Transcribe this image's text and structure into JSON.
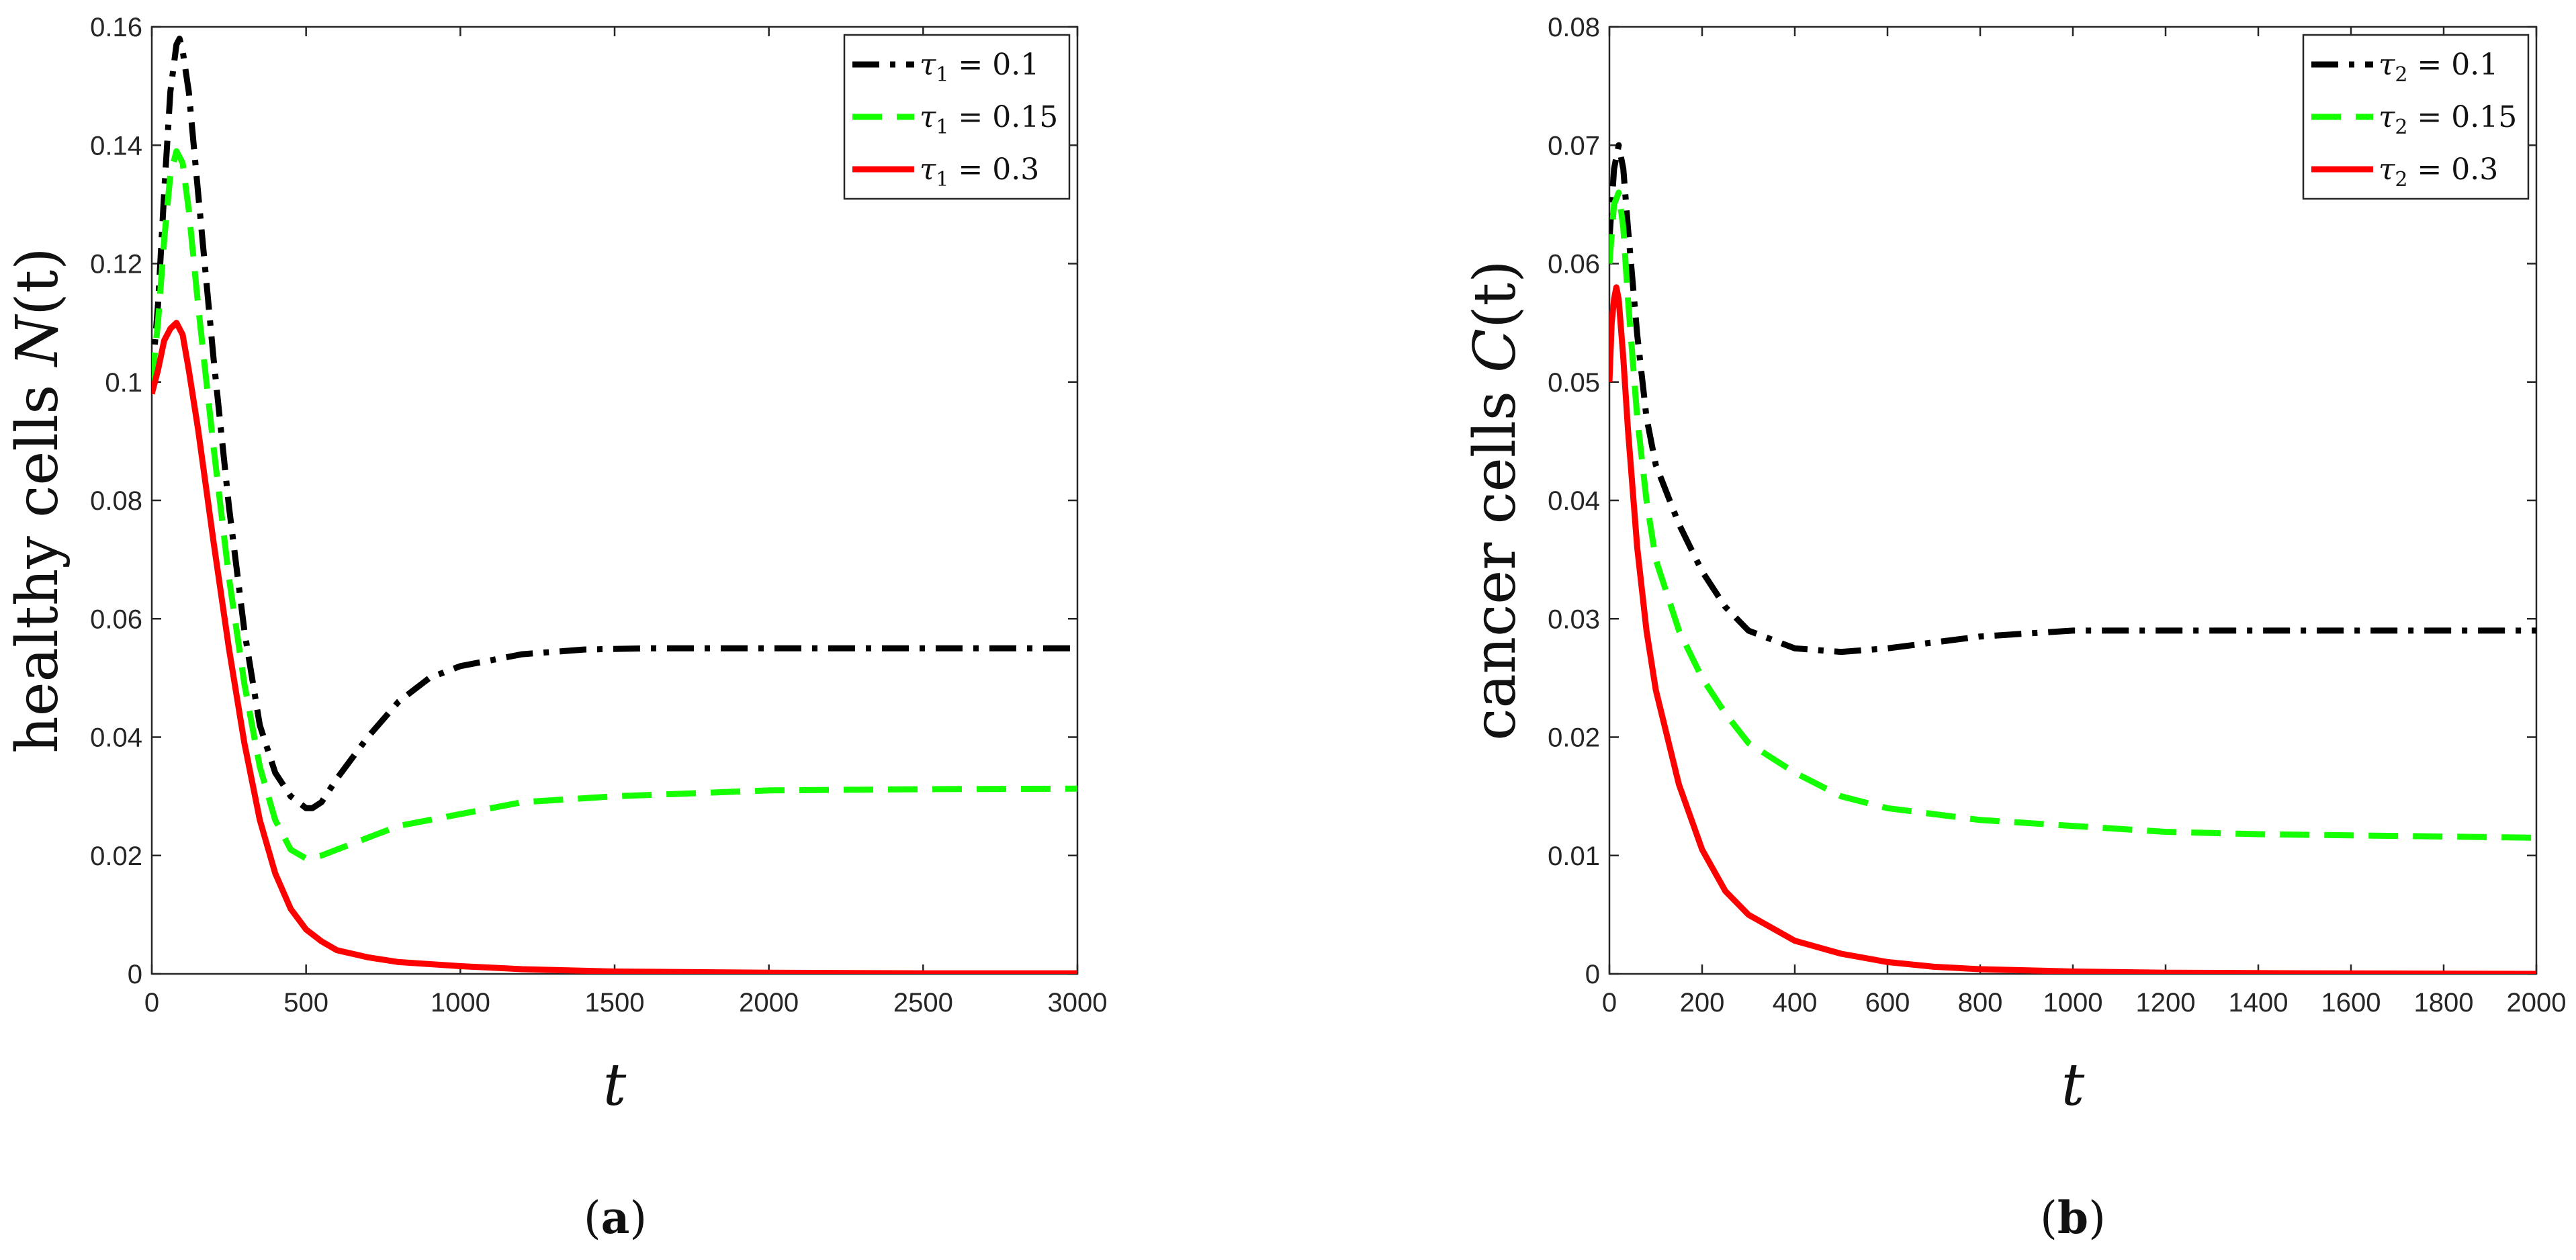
{
  "chart_data": [
    {
      "type": "line",
      "xlabel": "t",
      "ylabel_prefix": "healthy cells ",
      "ylabel_var": "N",
      "ylabel_arg": "(t)",
      "caption_letter": "a",
      "xlim": [
        0,
        3000
      ],
      "ylim": [
        0,
        0.16
      ],
      "xticks": [
        0,
        500,
        1000,
        1500,
        2000,
        2500,
        3000
      ],
      "yticks": [
        0,
        0.02,
        0.04,
        0.06,
        0.08,
        0.1,
        0.12,
        0.14,
        0.16
      ],
      "ytick_labels": [
        "0",
        "0.02",
        "0.04",
        "0.06",
        "0.08",
        "0.1",
        "0.12",
        "0.14",
        "0.16"
      ],
      "legend_position": "top-right",
      "series": [
        {
          "legend_var": "τ",
          "legend_sub": "1",
          "legend_value": " = 0.1",
          "color": "#000000",
          "style": "dashdot",
          "x": [
            0,
            20,
            40,
            60,
            80,
            90,
            100,
            120,
            150,
            200,
            250,
            300,
            350,
            400,
            450,
            500,
            520,
            550,
            600,
            700,
            800,
            900,
            1000,
            1200,
            1400,
            1600,
            2000,
            2500,
            3000
          ],
          "y": [
            0.1,
            0.113,
            0.132,
            0.149,
            0.157,
            0.158,
            0.156,
            0.149,
            0.132,
            0.104,
            0.079,
            0.058,
            0.042,
            0.034,
            0.03,
            0.028,
            0.028,
            0.029,
            0.033,
            0.04,
            0.046,
            0.05,
            0.052,
            0.054,
            0.0548,
            0.055,
            0.055,
            0.055,
            0.055
          ]
        },
        {
          "legend_var": "τ",
          "legend_sub": "1",
          "legend_value": " = 0.15",
          "color": "#14ff00",
          "style": "dashed",
          "x": [
            0,
            20,
            40,
            60,
            80,
            100,
            120,
            150,
            200,
            250,
            300,
            350,
            400,
            450,
            500,
            550,
            600,
            700,
            800,
            1000,
            1200,
            1500,
            2000,
            2500,
            3000
          ],
          "y": [
            0.1,
            0.11,
            0.124,
            0.135,
            0.139,
            0.137,
            0.129,
            0.113,
            0.089,
            0.067,
            0.049,
            0.035,
            0.026,
            0.021,
            0.0195,
            0.02,
            0.021,
            0.023,
            0.025,
            0.027,
            0.029,
            0.03,
            0.031,
            0.0312,
            0.0313
          ]
        },
        {
          "legend_var": "τ",
          "legend_sub": "1",
          "legend_value": " = 0.3",
          "color": "#ff0000",
          "style": "solid",
          "x": [
            0,
            20,
            40,
            60,
            80,
            100,
            120,
            150,
            200,
            250,
            300,
            350,
            400,
            450,
            500,
            550,
            600,
            700,
            800,
            1000,
            1200,
            1500,
            2000,
            2500,
            3000
          ],
          "y": [
            0.098,
            0.102,
            0.107,
            0.109,
            0.11,
            0.108,
            0.102,
            0.092,
            0.073,
            0.055,
            0.039,
            0.026,
            0.017,
            0.011,
            0.0075,
            0.0055,
            0.004,
            0.0028,
            0.002,
            0.0013,
            0.0008,
            0.0004,
            0.0002,
            0.0001,
            0.0001
          ]
        }
      ]
    },
    {
      "type": "line",
      "xlabel": "t",
      "ylabel_prefix": "cancer cells ",
      "ylabel_var": "C",
      "ylabel_arg": "(t)",
      "caption_letter": "b",
      "xlim": [
        0,
        2000
      ],
      "ylim": [
        0,
        0.08
      ],
      "xticks": [
        0,
        200,
        400,
        600,
        800,
        1000,
        1200,
        1400,
        1600,
        1800,
        2000
      ],
      "yticks": [
        0,
        0.01,
        0.02,
        0.03,
        0.04,
        0.05,
        0.06,
        0.07,
        0.08
      ],
      "ytick_labels": [
        "0",
        "0.01",
        "0.02",
        "0.03",
        "0.04",
        "0.05",
        "0.06",
        "0.07",
        "0.08"
      ],
      "legend_position": "top-right",
      "series": [
        {
          "legend_var": "τ",
          "legend_sub": "2",
          "legend_value": " = 0.1",
          "color": "#000000",
          "style": "dashdot",
          "x": [
            0,
            10,
            20,
            30,
            40,
            60,
            80,
            100,
            150,
            200,
            250,
            300,
            400,
            500,
            600,
            700,
            800,
            1000,
            1200,
            1400,
            1600,
            1800,
            2000
          ],
          "y": [
            0.062,
            0.068,
            0.07,
            0.068,
            0.063,
            0.054,
            0.047,
            0.043,
            0.038,
            0.034,
            0.031,
            0.029,
            0.0275,
            0.0272,
            0.0275,
            0.028,
            0.0285,
            0.029,
            0.029,
            0.029,
            0.029,
            0.029,
            0.029
          ]
        },
        {
          "legend_var": "τ",
          "legend_sub": "2",
          "legend_value": " = 0.15",
          "color": "#14ff00",
          "style": "dashed",
          "x": [
            0,
            10,
            20,
            30,
            40,
            60,
            80,
            100,
            150,
            200,
            250,
            300,
            400,
            500,
            600,
            800,
            1000,
            1200,
            1400,
            1600,
            1800,
            2000
          ],
          "y": [
            0.06,
            0.065,
            0.066,
            0.063,
            0.057,
            0.047,
            0.04,
            0.035,
            0.029,
            0.025,
            0.022,
            0.0195,
            0.017,
            0.015,
            0.014,
            0.013,
            0.0125,
            0.012,
            0.0118,
            0.0117,
            0.0116,
            0.0115
          ]
        },
        {
          "legend_var": "τ",
          "legend_sub": "2",
          "legend_value": " = 0.3",
          "color": "#ff0000",
          "style": "solid",
          "x": [
            0,
            5,
            10,
            15,
            20,
            30,
            40,
            60,
            80,
            100,
            150,
            200,
            250,
            300,
            400,
            500,
            600,
            700,
            800,
            1000,
            1200,
            1500,
            2000
          ],
          "y": [
            0.05,
            0.055,
            0.057,
            0.058,
            0.057,
            0.052,
            0.046,
            0.036,
            0.029,
            0.024,
            0.016,
            0.0105,
            0.007,
            0.005,
            0.0028,
            0.0017,
            0.001,
            0.0006,
            0.0004,
            0.0002,
            0.0001,
            5e-05,
            0.0
          ]
        }
      ]
    }
  ]
}
